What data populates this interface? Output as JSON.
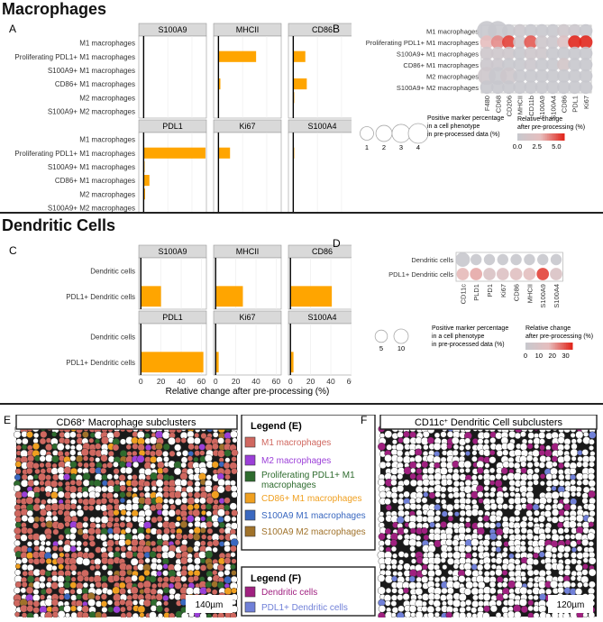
{
  "sections": {
    "macro_title": "Macrophages",
    "dc_title": "Dendritic Cells"
  },
  "chart_data": [
    {
      "id": "A",
      "panel_letter": "A",
      "type": "bar",
      "orientation": "horizontal",
      "categories": [
        "M1 macrophages",
        "Proliferating PDL1+ M1 macrophages",
        "S100A9+ M1 macrophages",
        "CD86+ M1 macrophages",
        "M2 macrophages",
        "S100A9+ M2 macrophages"
      ],
      "facets": [
        {
          "name": "S100A9",
          "values": [
            0,
            0,
            0.1,
            0.1,
            0,
            0.1
          ]
        },
        {
          "name": "MHCII",
          "values": [
            0,
            7.8,
            0,
            0.4,
            0,
            0
          ]
        },
        {
          "name": "CD86",
          "values": [
            0,
            2.5,
            0,
            2.8,
            0.2,
            0
          ]
        },
        {
          "name": "PDL1",
          "values": [
            0,
            12.8,
            0.2,
            1.2,
            0.3,
            0
          ]
        },
        {
          "name": "Ki67",
          "values": [
            0,
            2.4,
            0,
            0.1,
            0,
            0
          ]
        },
        {
          "name": "S100A4",
          "values": [
            0,
            0.2,
            0,
            0.1,
            0.1,
            0.1
          ]
        }
      ],
      "xlim": [
        -1,
        13
      ],
      "xticks": [
        0,
        5,
        10
      ],
      "xlabel": "Relative change after pre-processing (%)",
      "bar_color": "#FFA500"
    },
    {
      "id": "B",
      "panel_letter": "B",
      "type": "dot",
      "rows": [
        "M1 macrophages",
        "Proliferating PDL1+ M1 macrophages",
        "S100A9+ M1 macrophages",
        "CD86+ M1 macrophages",
        "M2 macrophages",
        "S100A9+ M2 macrophages"
      ],
      "columns": [
        "F480",
        "CD68",
        "CD206",
        "MHCII",
        "CD11b",
        "S100A9",
        "S100A4",
        "CD86",
        "PDL1",
        "Ki67"
      ],
      "size_values": [
        [
          4,
          4,
          1,
          1,
          1,
          1,
          1,
          1,
          1,
          1
        ],
        [
          1,
          1,
          1,
          1,
          1,
          1,
          1,
          1,
          1,
          1
        ],
        [
          1,
          1,
          1,
          1,
          1,
          1,
          1,
          1,
          1,
          1
        ],
        [
          1,
          1,
          1,
          1,
          1,
          1,
          1,
          1,
          1,
          1
        ],
        [
          3,
          3,
          2.5,
          1,
          1,
          1,
          1,
          1,
          1,
          1
        ],
        [
          1,
          1,
          1,
          1,
          1,
          1,
          1,
          1,
          1,
          1
        ]
      ],
      "color_values": [
        [
          0,
          0,
          0,
          0.3,
          0,
          0,
          0,
          0.5,
          0.3,
          0
        ],
        [
          3,
          4,
          5.5,
          0.5,
          5,
          0.5,
          0.3,
          2,
          6,
          6
        ],
        [
          0.5,
          0.5,
          0.5,
          0,
          0.5,
          0.5,
          0,
          0,
          0,
          0
        ],
        [
          0.3,
          0.3,
          0,
          0,
          0.3,
          0,
          0,
          1,
          0,
          0
        ],
        [
          0.5,
          0,
          0.5,
          0,
          0,
          0,
          0,
          0,
          0,
          0
        ],
        [
          0,
          0,
          0,
          0,
          0,
          0,
          0,
          0,
          0,
          0
        ]
      ],
      "size_legend": {
        "label": "Positive marker percentage in a cell phenotype in pre-processed data (%)",
        "values": [
          1,
          2,
          3,
          4
        ]
      },
      "color_legend": {
        "label": "Relative change after pre-processing (%)",
        "ticks": [
          "0.0",
          "2.5",
          "5.0"
        ],
        "min": 0,
        "max": 6
      }
    },
    {
      "id": "C",
      "panel_letter": "C",
      "type": "bar",
      "orientation": "horizontal",
      "categories": [
        "Dendritic cells",
        "PDL1+ Dendritic cells"
      ],
      "facets": [
        {
          "name": "S100A9",
          "values": [
            0,
            20
          ]
        },
        {
          "name": "MHCII",
          "values": [
            0,
            27
          ]
        },
        {
          "name": "CD86",
          "values": [
            0,
            41
          ]
        },
        {
          "name": "PDL1",
          "values": [
            0,
            62
          ]
        },
        {
          "name": "Ki67",
          "values": [
            0,
            3
          ]
        },
        {
          "name": "S100A4",
          "values": [
            0,
            3
          ]
        }
      ],
      "xlim": [
        -2,
        65
      ],
      "xticks": [
        0,
        20,
        40,
        60
      ],
      "xlabel": "Relative change after pre-processing (%)",
      "bar_color": "#FFA500"
    },
    {
      "id": "D",
      "panel_letter": "D",
      "type": "dot",
      "rows": [
        "Dendritic cells",
        "PDL1+ Dendritic cells"
      ],
      "columns": [
        "CD11c",
        "PLD1",
        "PD1",
        "Ki67",
        "CD86",
        "MHCII",
        "S100A9",
        "S100A4"
      ],
      "size_values": [
        [
          10,
          3,
          3,
          3,
          3,
          3,
          3,
          3
        ],
        [
          5,
          5,
          5,
          5,
          5,
          5,
          5,
          5
        ]
      ],
      "color_values": [
        [
          0,
          0,
          0,
          0,
          0,
          0,
          0,
          0
        ],
        [
          18,
          20,
          10,
          12,
          14,
          16,
          32,
          10
        ]
      ],
      "size_legend": {
        "label": "Positive marker percentage in a cell phenotype in pre-processed data (%)",
        "values": [
          5,
          10
        ]
      },
      "color_legend": {
        "label": "Relative change after pre-processing (%)",
        "ticks": [
          "0",
          "10",
          "20",
          "30"
        ],
        "min": 0,
        "max": 35
      }
    }
  ],
  "panel_e": {
    "letter": "E",
    "title_main": "CD68",
    "title_sup": "+",
    "title_rest": " Macrophage subclusters",
    "scale": "140µm",
    "legend_title": "Legend (E)",
    "legend_items": [
      {
        "label": "M1 macrophages",
        "color": "#D06860"
      },
      {
        "label": "M2 macrophages",
        "color": "#9B3FD8"
      },
      {
        "label": "Proliferating PDL1+ M1 macrophages",
        "color": "#2E6B2E"
      },
      {
        "label": "CD86+ M1 macrophages",
        "color": "#F0A020"
      },
      {
        "label": "S100A9 M1 macrophages",
        "color": "#3A68C0"
      },
      {
        "label": "S100A9 M2 macrophages",
        "color": "#A0722A"
      }
    ]
  },
  "panel_f": {
    "letter": "F",
    "title_main": "CD11c",
    "title_sup": "+",
    "title_rest": " Dendritic Cell subclusters",
    "scale": "120µm",
    "legend_title": "Legend (F)",
    "legend_items": [
      {
        "label": "Dendritic cells",
        "color": "#A02080"
      },
      {
        "label": "PDL1+ Dendritic cells",
        "color": "#7080D8"
      }
    ]
  }
}
